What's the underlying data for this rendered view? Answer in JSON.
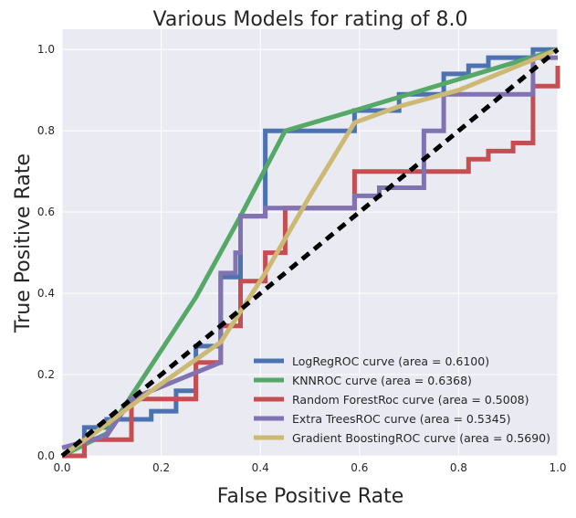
{
  "chart_data": {
    "type": "line",
    "title": "Various Models for rating of 8.0",
    "xlabel": "False Positive Rate",
    "ylabel": "True Positive Rate",
    "xlim": [
      0,
      1
    ],
    "ylim": [
      0,
      1.05
    ],
    "xticks": [
      "0.0",
      "0.2",
      "0.4",
      "0.6",
      "0.8",
      "1.0"
    ],
    "yticks": [
      "0.0",
      "0.2",
      "0.4",
      "0.6",
      "0.8",
      "1.0"
    ],
    "grid": true,
    "legend_position": "lower-right",
    "background_color": "#eaeaf2",
    "series": [
      {
        "name": "LogRegROC curve (area = 0.6100)",
        "color": "#4c72b0",
        "x": [
          0,
          0.045,
          0.045,
          0.09,
          0.09,
          0.18,
          0.18,
          0.23,
          0.23,
          0.27,
          0.27,
          0.32,
          0.32,
          0.36,
          0.36,
          0.41,
          0.41,
          0.59,
          0.59,
          0.68,
          0.68,
          0.77,
          0.77,
          0.82,
          0.82,
          0.86,
          0.86,
          0.95,
          0.95,
          1.0
        ],
        "y": [
          0,
          0,
          0.07,
          0.07,
          0.09,
          0.09,
          0.11,
          0.11,
          0.16,
          0.16,
          0.27,
          0.27,
          0.44,
          0.44,
          0.59,
          0.59,
          0.8,
          0.8,
          0.85,
          0.85,
          0.89,
          0.89,
          0.94,
          0.94,
          0.96,
          0.96,
          0.98,
          0.98,
          1.0,
          1.0
        ]
      },
      {
        "name": "KNNROC curve (area = 0.6368)",
        "color": "#55a868",
        "x": [
          0,
          0.09,
          0.27,
          0.36,
          0.45,
          0.59,
          1.0
        ],
        "y": [
          0,
          0.055,
          0.39,
          0.59,
          0.8,
          0.85,
          1.0
        ]
      },
      {
        "name": "Random ForestRoc curve (area = 0.5008)",
        "color": "#c44e52",
        "x": [
          0,
          0.045,
          0.045,
          0.14,
          0.14,
          0.27,
          0.27,
          0.32,
          0.32,
          0.36,
          0.36,
          0.41,
          0.41,
          0.45,
          0.45,
          0.59,
          0.59,
          0.82,
          0.82,
          0.86,
          0.86,
          0.91,
          0.91,
          0.95,
          0.95,
          1.0,
          1.0
        ],
        "y": [
          0,
          0,
          0.04,
          0.04,
          0.14,
          0.14,
          0.23,
          0.23,
          0.32,
          0.32,
          0.43,
          0.43,
          0.5,
          0.5,
          0.61,
          0.61,
          0.7,
          0.7,
          0.73,
          0.73,
          0.75,
          0.75,
          0.77,
          0.77,
          0.91,
          0.91,
          0.96
        ]
      },
      {
        "name": "Extra TreesROC curve (area = 0.5345)",
        "color": "#8172b2",
        "x": [
          0,
          0.09,
          0.14,
          0.32,
          0.32,
          0.35,
          0.35,
          0.36,
          0.36,
          0.41,
          0.41,
          0.45,
          0.45,
          0.59,
          0.59,
          0.64,
          0.64,
          0.73,
          0.73,
          0.77,
          0.77,
          0.95,
          0.95,
          1.0
        ],
        "y": [
          0.02,
          0.05,
          0.14,
          0.23,
          0.45,
          0.45,
          0.5,
          0.5,
          0.59,
          0.59,
          0.61,
          0.61,
          0.61,
          0.61,
          0.64,
          0.64,
          0.66,
          0.66,
          0.8,
          0.8,
          0.89,
          0.89,
          0.98,
          0.98
        ]
      },
      {
        "name": "Gradient BoostingROC curve (area = 0.5690)",
        "color": "#ccb974",
        "x": [
          0,
          0.07,
          0.18,
          0.32,
          0.41,
          0.5,
          0.59,
          0.68,
          0.8,
          1.0
        ],
        "y": [
          0,
          0.06,
          0.16,
          0.28,
          0.45,
          0.64,
          0.82,
          0.86,
          0.9,
          1.0
        ]
      }
    ],
    "reference_line": {
      "color": "#000000",
      "x": [
        0,
        1
      ],
      "y": [
        0,
        1
      ]
    }
  }
}
